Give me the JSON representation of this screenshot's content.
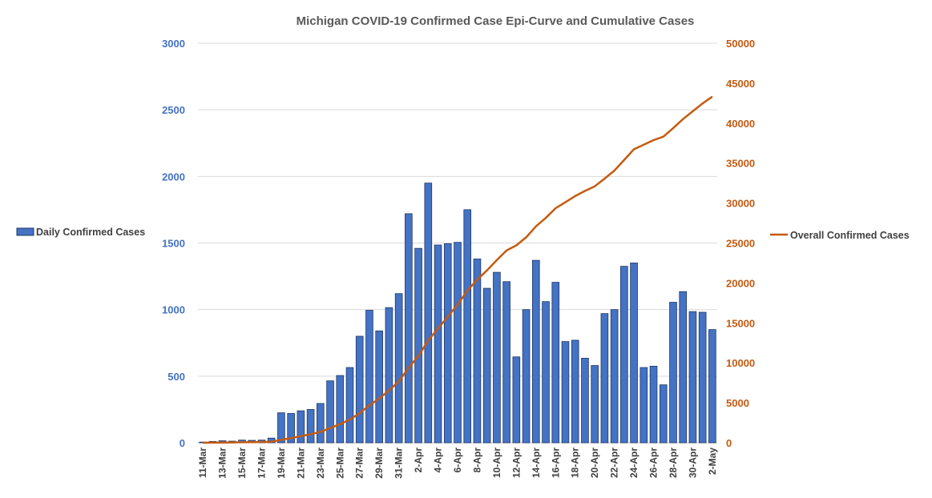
{
  "chart_data": {
    "type": "bar",
    "title": "Michigan COVID-19 Confirmed Case Epi-Curve and Cumulative Cases",
    "categories": [
      "11-Mar",
      "12-Mar",
      "13-Mar",
      "14-Mar",
      "15-Mar",
      "16-Mar",
      "17-Mar",
      "18-Mar",
      "19-Mar",
      "20-Mar",
      "21-Mar",
      "22-Mar",
      "23-Mar",
      "24-Mar",
      "25-Mar",
      "26-Mar",
      "27-Mar",
      "28-Mar",
      "29-Mar",
      "30-Mar",
      "31-Mar",
      "1-Apr",
      "2-Apr",
      "3-Apr",
      "4-Apr",
      "5-Apr",
      "6-Apr",
      "7-Apr",
      "8-Apr",
      "9-Apr",
      "10-Apr",
      "11-Apr",
      "12-Apr",
      "13-Apr",
      "14-Apr",
      "15-Apr",
      "16-Apr",
      "17-Apr",
      "18-Apr",
      "19-Apr",
      "20-Apr",
      "21-Apr",
      "22-Apr",
      "23-Apr",
      "24-Apr",
      "25-Apr",
      "26-Apr",
      "27-Apr",
      "28-Apr",
      "29-Apr",
      "30-Apr",
      "1-May",
      "2-May"
    ],
    "x_tick_labels": [
      "11-Mar",
      "13-Mar",
      "15-Mar",
      "17-Mar",
      "19-Mar",
      "21-Mar",
      "23-Mar",
      "25-Mar",
      "27-Mar",
      "29-Mar",
      "31-Mar",
      "2-Apr",
      "4-Apr",
      "6-Apr",
      "8-Apr",
      "10-Apr",
      "12-Apr",
      "14-Apr",
      "16-Apr",
      "18-Apr",
      "20-Apr",
      "22-Apr",
      "24-Apr",
      "26-Apr",
      "28-Apr",
      "30-Apr",
      "2-May"
    ],
    "series": [
      {
        "name": "Daily Confirmed Cases",
        "type": "bar",
        "axis": "left",
        "color": "#4472c4",
        "values": [
          5,
          10,
          15,
          12,
          20,
          18,
          20,
          35,
          225,
          220,
          240,
          250,
          295,
          465,
          505,
          565,
          800,
          995,
          840,
          1015,
          1120,
          1720,
          1460,
          1950,
          1485,
          1495,
          1505,
          1750,
          1380,
          1160,
          1280,
          1210,
          645,
          1000,
          1370,
          1060,
          1205,
          760,
          770,
          635,
          580,
          970,
          1000,
          1325,
          1350,
          565,
          575,
          435,
          1055,
          1135,
          985,
          980,
          850
        ]
      },
      {
        "name": "Overall Confirmed Cases",
        "type": "line",
        "axis": "right",
        "color": "#c55a11",
        "values": [
          5,
          15,
          30,
          42,
          62,
          80,
          100,
          135,
          360,
          580,
          820,
          1070,
          1365,
          1830,
          2335,
          2900,
          3700,
          4695,
          5535,
          6550,
          7670,
          9390,
          10850,
          12800,
          14285,
          15780,
          17285,
          19035,
          20415,
          21575,
          22855,
          24065,
          24710,
          25710,
          27080,
          28140,
          29345,
          30105,
          30875,
          31510,
          32090,
          33060,
          34060,
          35385,
          36735,
          37300,
          37875,
          38310,
          39365,
          40500,
          41485,
          42465,
          43315
        ]
      }
    ],
    "y_left": {
      "ylim": [
        0,
        3000
      ],
      "ticks": [
        "0",
        "500",
        "1000",
        "1500",
        "2000",
        "2500",
        "3000"
      ]
    },
    "y_right": {
      "ylim": [
        0,
        50000
      ],
      "ticks": [
        "0",
        "5000",
        "10000",
        "15000",
        "20000",
        "25000",
        "30000",
        "35000",
        "40000",
        "45000",
        "50000"
      ]
    },
    "grid": true,
    "legend": {
      "bars": "left",
      "line": "right"
    }
  }
}
